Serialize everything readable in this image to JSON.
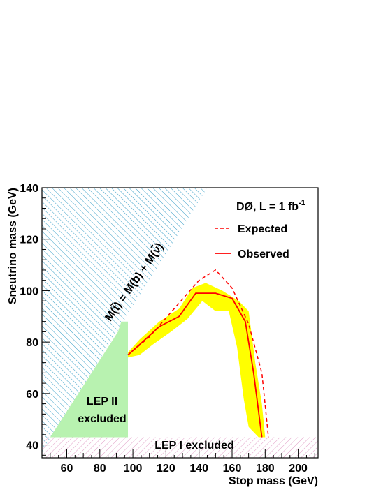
{
  "chart_data": {
    "type": "line",
    "xlabel": "Stop mass (GeV)",
    "ylabel": "Sneutrino mass (GeV)",
    "xlim": [
      45,
      212
    ],
    "ylim": [
      35,
      140
    ],
    "x_ticks": [
      60,
      80,
      100,
      120,
      140,
      160,
      180,
      200
    ],
    "y_ticks": [
      40,
      60,
      80,
      100,
      120,
      140
    ],
    "experiment_label": "DØ, L = 1 fb",
    "experiment_label_sup": "-1",
    "series": [
      {
        "name": "Expected",
        "style": "dashed",
        "color": "#ff0000",
        "x": [
          97,
          110,
          125,
          140,
          150,
          160,
          170,
          178,
          182
        ],
        "y": [
          75,
          82,
          93,
          104,
          108,
          101,
          87,
          68,
          43
        ]
      },
      {
        "name": "Observed",
        "style": "solid",
        "color": "#ff0000",
        "x": [
          97,
          104,
          116,
          128,
          138,
          150,
          160,
          168,
          173,
          178
        ],
        "y": [
          75,
          79,
          86,
          90,
          99,
          99,
          97,
          88,
          68,
          43
        ]
      }
    ],
    "observed_band": {
      "color": "#ffff00",
      "upper": [
        [
          97,
          76
        ],
        [
          104,
          81
        ],
        [
          116,
          88
        ],
        [
          128,
          93
        ],
        [
          136,
          101
        ],
        [
          144,
          103
        ],
        [
          154,
          100
        ],
        [
          164,
          96
        ],
        [
          170,
          92
        ],
        [
          174,
          72
        ],
        [
          178,
          56
        ],
        [
          180,
          43
        ]
      ],
      "lower": [
        [
          176,
          43
        ],
        [
          170,
          47
        ],
        [
          167,
          58
        ],
        [
          163,
          78
        ],
        [
          158,
          92
        ],
        [
          150,
          92
        ],
        [
          142,
          96
        ],
        [
          133,
          89
        ],
        [
          123,
          84
        ],
        [
          112,
          79
        ],
        [
          104,
          75
        ],
        [
          97,
          74
        ]
      ]
    },
    "regions": [
      {
        "name": "kinematic-limit",
        "label": "M(t̃) = M(b) + M(ν̃)",
        "color": "#3aa0c8",
        "polygon": [
          [
            45,
            140
          ],
          [
            45,
            35
          ],
          [
            47.5,
            40
          ],
          [
            145,
            140
          ]
        ]
      },
      {
        "name": "lep2-excluded",
        "label_line1": "LEP II",
        "label_line2": "excluded",
        "color": "#b8f2b0",
        "polygon": [
          [
            50,
            43
          ],
          [
            91,
            84
          ],
          [
            93,
            88
          ],
          [
            97,
            88
          ],
          [
            97,
            43
          ]
        ]
      },
      {
        "name": "lep1-excluded",
        "label": "LEP I excluded",
        "color": "#e2a0c8",
        "ymax": 43
      }
    ],
    "legend": "top-right"
  }
}
